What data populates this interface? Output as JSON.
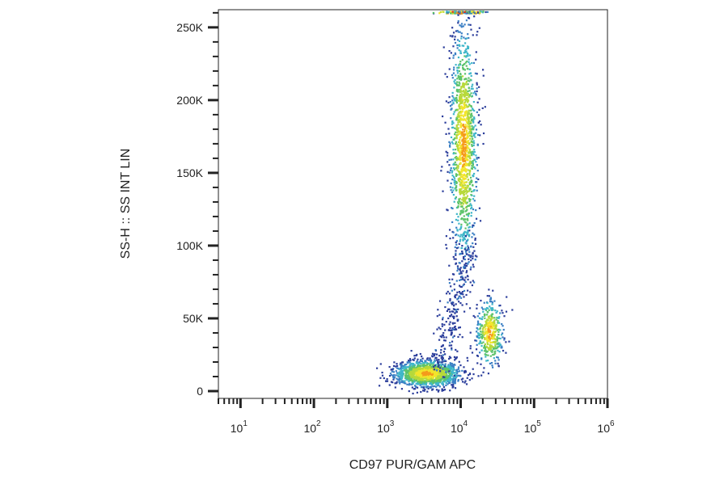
{
  "chart_data": {
    "type": "scatter",
    "plot_style": "flow cytometry density dot plot",
    "xlabel": "CD97 PUR/GAM APC",
    "ylabel": "SS-H :: SS INT LIN",
    "x_scale": "log",
    "y_scale": "linear",
    "xlim": [
      5,
      1000000
    ],
    "ylim": [
      -5000,
      262144
    ],
    "x_ticks": [
      {
        "base": "10",
        "exp": "1",
        "value": 10
      },
      {
        "base": "10",
        "exp": "2",
        "value": 100
      },
      {
        "base": "10",
        "exp": "3",
        "value": 1000
      },
      {
        "base": "10",
        "exp": "4",
        "value": 10000
      },
      {
        "base": "10",
        "exp": "5",
        "value": 100000
      },
      {
        "base": "10",
        "exp": "6",
        "value": 1000000
      }
    ],
    "y_ticks": [
      {
        "label": "0",
        "value": 0
      },
      {
        "label": "50K",
        "value": 50000
      },
      {
        "label": "100K",
        "value": 100000
      },
      {
        "label": "150K",
        "value": 150000
      },
      {
        "label": "200K",
        "value": 200000
      },
      {
        "label": "250K",
        "value": 250000
      }
    ],
    "density_colors": [
      "#2b3d9b",
      "#3a7fc4",
      "#3fb6c9",
      "#5cc36a",
      "#b7d93a",
      "#f2e52b",
      "#f59b1c",
      "#e2231a"
    ],
    "populations": [
      {
        "x_center": 3500,
        "y_center": 12000,
        "x_spread_decades": 0.22,
        "y_spread": 4500,
        "relative_size": 0.42
      },
      {
        "x_center": 11000,
        "y_center": 170000,
        "x_spread_decades": 0.09,
        "y_spread": 40000,
        "relative_size": 0.38
      },
      {
        "x_center": 25000,
        "y_center": 40000,
        "x_spread_decades": 0.09,
        "y_spread": 11000,
        "relative_size": 0.12
      }
    ],
    "grid": false
  }
}
